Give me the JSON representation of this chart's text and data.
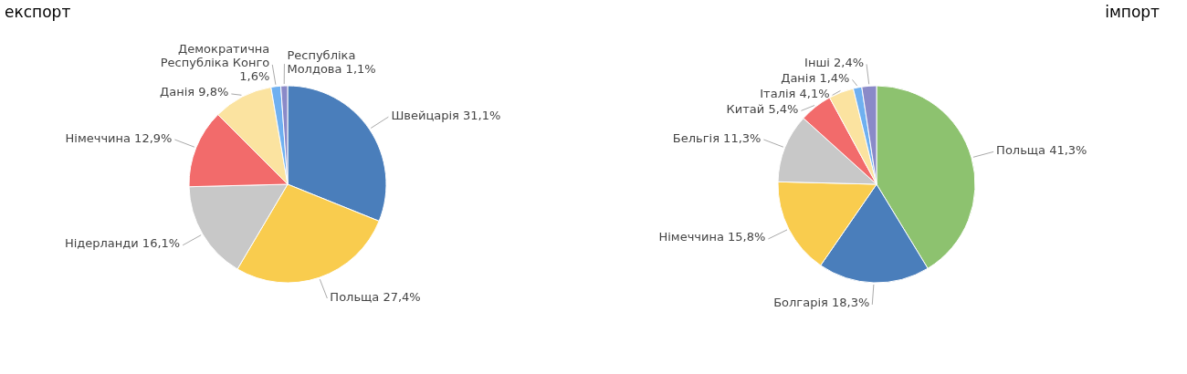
{
  "chart_data": [
    {
      "type": "pie",
      "title": "експорт",
      "categories": [
        "Швейцарія",
        "Польща",
        "Нідерланди",
        "Німеччина",
        "Данія",
        "Демократична Республіка Конго",
        "Республіка Молдова"
      ],
      "values": [
        31.1,
        27.4,
        16.1,
        12.9,
        9.8,
        1.6,
        1.1
      ],
      "value_labels": [
        "31,1%",
        "27,4%",
        "16,1%",
        "12,9%",
        "9,8%",
        "1,6%",
        "1,1%"
      ],
      "colors": [
        "#4a7ebb",
        "#f9cc4e",
        "#c8c8c8",
        "#f26b6b",
        "#fbe3a0",
        "#6fb0f0",
        "#8a8ac8"
      ]
    },
    {
      "type": "pie",
      "title": "імпорт",
      "categories": [
        "Польща",
        "Болгарія",
        "Німеччина",
        "Бельгія",
        "Китай",
        "Італія",
        "Данія",
        "Інші"
      ],
      "values": [
        41.3,
        18.3,
        15.8,
        11.3,
        5.4,
        4.1,
        1.4,
        2.4
      ],
      "value_labels": [
        "41,3%",
        "18,3%",
        "15,8%",
        "11,3%",
        "5,4%",
        "4,1%",
        "1,4%",
        "2,4%"
      ],
      "colors": [
        "#8dc26f",
        "#4a7ebb",
        "#f9cc4e",
        "#c8c8c8",
        "#f26b6b",
        "#fbe3a0",
        "#6fb0f0",
        "#8a8ac8"
      ]
    }
  ]
}
